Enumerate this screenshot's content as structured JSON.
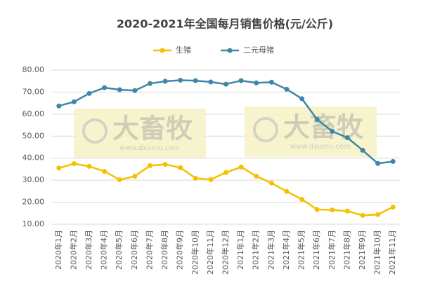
{
  "chart_data": {
    "type": "line",
    "title": "2020-2021年全国每月销售价格(元/公斤)",
    "categories": [
      "2020年1月",
      "2020年2月",
      "2020年3月",
      "2020年4月",
      "2020年5月",
      "2020年6月",
      "2020年7月",
      "2020年8月",
      "2020年9月",
      "2020年10月",
      "2020年11月",
      "2020年12月",
      "2021年1月",
      "2021年2月",
      "2021年3月",
      "2021年4月",
      "2021年5月",
      "2021年6月",
      "2021年7月",
      "2021年8月",
      "2021年9月",
      "2021年10月",
      "2021年11月"
    ],
    "series": [
      {
        "name": "生猪",
        "color": "#f5c000",
        "values": [
          35.5,
          37.5,
          36.3,
          34.0,
          30.2,
          31.8,
          36.6,
          37.2,
          35.7,
          30.9,
          30.3,
          33.5,
          36.0,
          31.8,
          28.7,
          24.9,
          21.3,
          16.7,
          16.5,
          16.0,
          14.0,
          14.4,
          17.8
        ]
      },
      {
        "name": "二元母猪",
        "color": "#3f86a8",
        "values": [
          63.7,
          65.6,
          69.4,
          72.0,
          71.1,
          70.7,
          73.9,
          74.9,
          75.4,
          75.2,
          74.6,
          73.6,
          75.2,
          74.2,
          74.5,
          71.3,
          67.0,
          57.6,
          52.2,
          49.3,
          43.6,
          37.6,
          38.5
        ]
      }
    ],
    "ylim": [
      10,
      80
    ],
    "yticks": [
      {
        "value": 10,
        "label": "10.00"
      },
      {
        "value": 20,
        "label": "20.00"
      },
      {
        "value": 30,
        "label": "30.00"
      },
      {
        "value": 40,
        "label": "40.00"
      },
      {
        "value": 50,
        "label": "50.00"
      },
      {
        "value": 60,
        "label": "60.00"
      },
      {
        "value": 70,
        "label": "70.00"
      },
      {
        "value": 80,
        "label": "80.00"
      }
    ],
    "grid": true,
    "legend": "top",
    "watermark": {
      "brand": "大畜牧",
      "url": "www.dxumu.com"
    }
  }
}
